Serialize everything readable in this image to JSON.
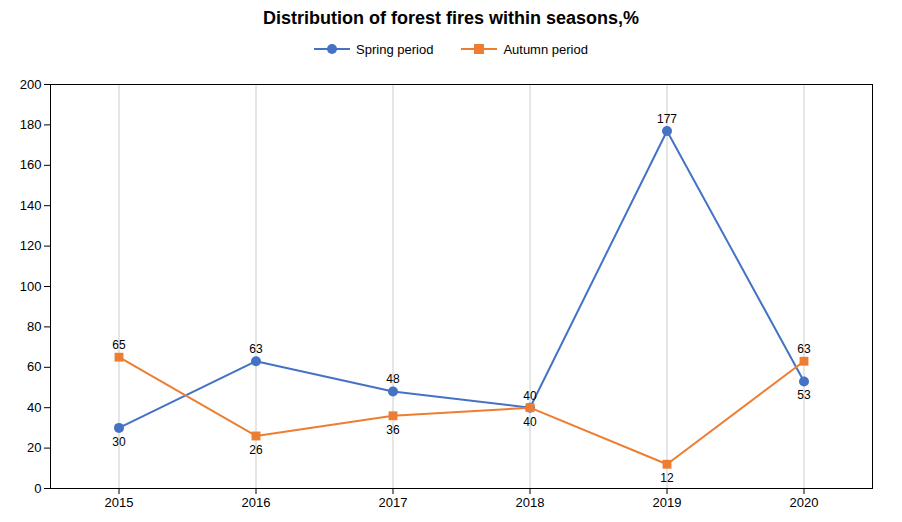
{
  "chart_data": {
    "type": "line",
    "title": "Distribution of forest fires within seasons,%",
    "x": [
      2015,
      2016,
      2017,
      2018,
      2019,
      2020
    ],
    "series": [
      {
        "name": "Spring period",
        "color": "#4472C4",
        "marker": "circle",
        "values": [
          30,
          63,
          48,
          40,
          177,
          53
        ]
      },
      {
        "name": "Autumn period",
        "color": "#ED7D31",
        "marker": "square",
        "values": [
          65,
          26,
          36,
          40,
          12,
          63
        ]
      }
    ],
    "xlim": [
      2014.5,
      2020.5
    ],
    "xticks": [
      2015,
      2016,
      2017,
      2018,
      2019,
      2020
    ],
    "ylim": [
      0,
      200
    ],
    "yticks": [
      0,
      20,
      40,
      60,
      80,
      100,
      120,
      140,
      160,
      180,
      200
    ],
    "grid": "x",
    "legend": "top",
    "data_labels": true
  }
}
